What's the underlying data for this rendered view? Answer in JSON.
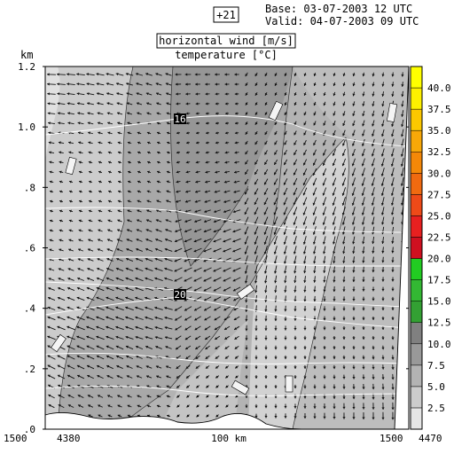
{
  "header": {
    "forecast_step": "+21",
    "base_label": "Base: 03-07-2003  12 UTC",
    "valid_label": "Valid: 04-07-2003  09 UTC",
    "title_line1": "horizontal wind [m/s]",
    "title_line2": "temperature [°C]"
  },
  "chart_data": {
    "type": "cross-section",
    "y_unit": "km",
    "ylim": [
      0.0,
      1.2
    ],
    "y_ticks": [
      {
        "value": 0.0,
        "label": ".0"
      },
      {
        "value": 0.2,
        "label": ".2"
      },
      {
        "value": 0.4,
        "label": ".4"
      },
      {
        "value": 0.6,
        "label": ".6"
      },
      {
        "value": 0.8,
        "label": ".8"
      },
      {
        "value": 1.0,
        "label": "1.0"
      },
      {
        "value": 1.2,
        "label": "1.2"
      }
    ],
    "x_labels": {
      "left_outer": "1500",
      "left_inner": "4380",
      "center": "100 km",
      "right_inner": "1500",
      "right_outer": "4470"
    },
    "colorbar": {
      "min": 0,
      "max": 42.5,
      "step": 2.5,
      "labels": [
        "2.5",
        "5.0",
        "7.5",
        "10.0",
        "12.5",
        "15.0",
        "17.5",
        "20.0",
        "22.5",
        "25.0",
        "27.5",
        "30.0",
        "32.5",
        "35.0",
        "37.5",
        "40.0"
      ],
      "colors": [
        "#e6e6e6",
        "#cccccc",
        "#b3b3b3",
        "#999999",
        "#808080",
        "#33a033",
        "#33b833",
        "#22cc22",
        "#d01020",
        "#e82020",
        "#ee4a18",
        "#f06a10",
        "#f48808",
        "#f8a808",
        "#fcc800",
        "#fef000",
        "#ffff00"
      ]
    },
    "temperature_isotherms_labeled": [
      {
        "value": 16,
        "label": "16"
      },
      {
        "value": 20,
        "label": "20"
      }
    ],
    "wind_speed_regions_m_s": [
      2.5,
      5.0,
      7.5,
      10.0
    ]
  },
  "colors": {
    "wind_vector": "#111111",
    "isotherm": "#ffffff",
    "terrain_top": "#ffffff"
  }
}
